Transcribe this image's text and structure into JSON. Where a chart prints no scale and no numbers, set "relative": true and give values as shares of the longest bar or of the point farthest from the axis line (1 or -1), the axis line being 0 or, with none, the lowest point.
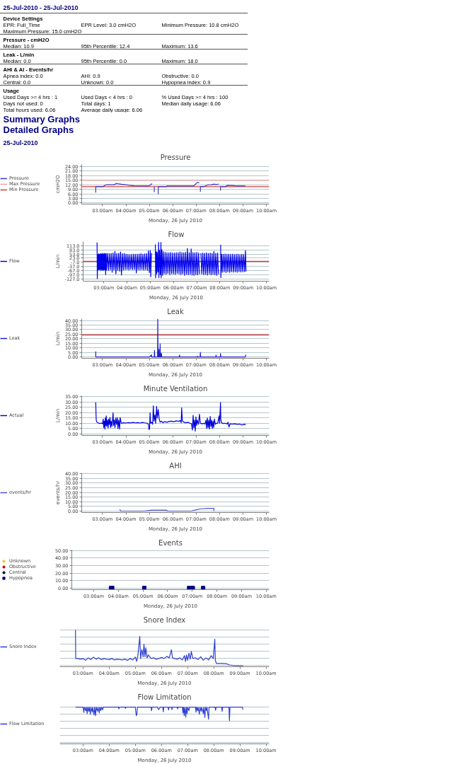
{
  "chart_data": [
    {
      "type": "other",
      "title": "25-Jul-2010 - 25-Jul-2010"
    },
    {
      "type": "other",
      "title": "Device Settings",
      "annotations": [
        "EPR: Full_Time",
        "EPR Level: 3.0 cmH2O",
        "Minimum Pressure: 10.8 cmH2O",
        "Maximum Pressure: 15.0 cmH2O"
      ]
    },
    {
      "type": "other",
      "title": "Pressure - cmH2O",
      "annotations": [
        "Median: 10.9",
        "95th Percentile: 12.4",
        "Maximum: 13.6"
      ]
    },
    {
      "type": "other",
      "title": "Leak - L/min",
      "annotations": [
        "Median: 0.0",
        "95th Percentile: 0.0",
        "Maximum: 18.0"
      ]
    },
    {
      "type": "other",
      "title": "AHI & AI - Events/hr",
      "annotations": [
        "Apnea index: 0.0",
        "AHI: 0.9",
        "Obstructive: 0.0",
        "Central: 0.0",
        "Unknown: 0.0",
        "Hypopnea index: 0.9"
      ]
    },
    {
      "type": "other",
      "title": "Usage",
      "annotations": [
        "Used Days >= 4 hrs : 1",
        "Used Days < 4 hrs : 0",
        "% Used Days >= 4 hrs : 100",
        "Days not used: 0",
        "Total days: 1",
        "Median daily usage: 6.06",
        "Total hours used: 6.06",
        "Average daily usage: 6.06"
      ]
    },
    {
      "type": "other",
      "annotations": [
        "Summary Graphs",
        "Detailed Graphs"
      ]
    },
    {
      "type": "other",
      "title": "25-Jul-2010"
    },
    {
      "type": "line",
      "title": "Pressure",
      "xlabel": "Monday, 26 July 2010",
      "ylabel": "cmH2O",
      "legend": "left",
      "grid": "y",
      "xlim": [
        2.11,
        10.12
      ],
      "xticks": [
        {
          "value": 3,
          "label": "03:00am"
        },
        {
          "value": 4,
          "label": "04:00am"
        },
        {
          "value": 5,
          "label": "05:00am"
        },
        {
          "value": 6,
          "label": "06:00am"
        },
        {
          "value": 7,
          "label": "07:00am"
        },
        {
          "value": 8,
          "label": "08:00am"
        },
        {
          "value": 9,
          "label": "09:00am"
        },
        {
          "value": 10,
          "label": "10:00am"
        }
      ],
      "ylim": [
        -0.7,
        25.4
      ],
      "yticks": [
        {
          "value": 0,
          "label": "0.00"
        },
        {
          "value": 3,
          "label": "3.00"
        },
        {
          "value": 6,
          "label": "6.00"
        },
        {
          "value": 9,
          "label": "9.00"
        },
        {
          "value": 12,
          "label": "12.00"
        },
        {
          "value": 15,
          "label": "15.00"
        },
        {
          "value": 18,
          "label": "18.00"
        },
        {
          "value": 21,
          "label": "21.00"
        },
        {
          "value": 24,
          "label": "24.00"
        }
      ],
      "series": [
        {
          "name": "Pressure",
          "color": "#3b3bbf",
          "x": [
            2.71,
            2.71,
            3.03,
            3.11,
            3.2,
            3.51,
            3.58,
            3.8,
            4.35,
            4.94,
            4.99,
            5.12,
            5.16,
            5.21,
            5.21,
            5.3,
            5.38,
            5.38,
            5.73,
            5.75,
            6.89,
            7.05,
            7.13,
            7.15,
            7.18,
            7.18,
            7.34,
            7.48,
            7.64,
            7.79,
            7.85,
            7.97,
            8.0,
            8.04,
            8.04,
            8.27,
            8.32,
            8.59,
            8.69,
            9.1
          ],
          "values": [
            6.9,
            10.8,
            10.8,
            11.8,
            12.1,
            12.1,
            12.9,
            12.4,
            11.4,
            11.2,
            11.4,
            12.8,
            null,
            10.8,
            7.2,
            null,
            5.8,
            10.8,
            10.8,
            11.2,
            11.2,
            13.6,
            13.2,
            null,
            7.5,
            10.8,
            10.8,
            11.9,
            12.1,
            12.5,
            12.1,
            12.6,
            null,
            8.3,
            10.8,
            10.8,
            11.7,
            11.6,
            11.2,
            11.2
          ]
        },
        {
          "name": "Max Pressure",
          "color": "#e8a0a0",
          "x": [
            2.11,
            10.12
          ],
          "values": [
            15,
            15
          ]
        },
        {
          "name": "Min Pressure",
          "color": "#d04040",
          "x": [
            2.11,
            10.12
          ],
          "values": [
            10.8,
            10.8
          ]
        }
      ]
    },
    {
      "type": "line",
      "title": "Flow",
      "xlabel": "Monday, 26 July 2010",
      "ylabel": "L/min",
      "legend": "left",
      "grid": "y",
      "xlim": [
        2.11,
        10.12
      ],
      "xticks": [
        {
          "value": 3,
          "label": "03:00am"
        },
        {
          "value": 4,
          "label": "04:00am"
        },
        {
          "value": 5,
          "label": "05:00am"
        },
        {
          "value": 6,
          "label": "06:00am"
        },
        {
          "value": 7,
          "label": "07:00am"
        },
        {
          "value": 8,
          "label": "08:00am"
        },
        {
          "value": 9,
          "label": "09:00am"
        },
        {
          "value": 10,
          "label": "10:00am"
        }
      ],
      "ylim": [
        -142,
        142
      ],
      "yticks": [
        {
          "value": 113,
          "label": "113.0"
        },
        {
          "value": 83,
          "label": "83.0"
        },
        {
          "value": 53,
          "label": "53.0"
        },
        {
          "value": 23,
          "label": "23.0"
        },
        {
          "value": -7,
          "label": "-7.0"
        },
        {
          "value": -37,
          "label": "-37.0"
        },
        {
          "value": -67,
          "label": "-67.0"
        },
        {
          "value": -97,
          "label": "-97.0"
        },
        {
          "value": -127,
          "label": "-127.0"
        }
      ],
      "series": [
        {
          "name": "Flow",
          "color": "#0000ee",
          "x": [
            2.71,
            2.72,
            2.74,
            2.76,
            2.78,
            2.8,
            2.82,
            2.84,
            2.86,
            2.88,
            2.9,
            2.92,
            2.94,
            2.96,
            2.98,
            3.0,
            3.02,
            3.04,
            3.06,
            3.08,
            3.1,
            3.12,
            3.16,
            3.2,
            3.24,
            3.28,
            3.32,
            3.36,
            3.4,
            3.44,
            3.48,
            3.52,
            3.56,
            3.6,
            3.64,
            3.68,
            3.72,
            3.76,
            3.8,
            3.84,
            3.88,
            3.92,
            3.96,
            4.0,
            4.04,
            4.08,
            4.12,
            4.16,
            4.2,
            4.24,
            4.28,
            4.32,
            4.36,
            4.4,
            4.44,
            4.48,
            4.52,
            4.56,
            4.6,
            4.64,
            4.68,
            4.72,
            4.76,
            4.8,
            4.84,
            4.88,
            4.92,
            4.96,
            5.0,
            5.02,
            5.05,
            5.1,
            5.22,
            5.23,
            5.26,
            5.28,
            5.3,
            5.33,
            5.36,
            5.37,
            5.4,
            5.43,
            5.46,
            5.47,
            5.5,
            5.53,
            5.56,
            5.6,
            5.64,
            5.68,
            5.72,
            5.76,
            5.8,
            5.84,
            5.88,
            5.92,
            5.96,
            6.0,
            6.04,
            6.08,
            6.12,
            6.16,
            6.2,
            6.24,
            6.28,
            6.32,
            6.36,
            6.4,
            6.44,
            6.48,
            6.52,
            6.56,
            6.6,
            6.64,
            6.68,
            6.72,
            6.76,
            6.8,
            6.84,
            6.88,
            6.92,
            6.96,
            7.0,
            7.04,
            7.08,
            7.12,
            7.15,
            7.18,
            7.22,
            7.26,
            7.3,
            7.34,
            7.38,
            7.42,
            7.46,
            7.5,
            7.54,
            7.58,
            7.62,
            7.66,
            7.7,
            7.74,
            7.78,
            7.82,
            7.86,
            7.9,
            7.94,
            7.97,
            8.03,
            8.04,
            8.07,
            8.1,
            8.14,
            8.18,
            8.22,
            8.26,
            8.3,
            8.34,
            8.38,
            8.42,
            8.46,
            8.5,
            8.54,
            8.58,
            8.62,
            8.66,
            8.7,
            8.74,
            8.78,
            8.82,
            8.86,
            8.9,
            8.94,
            8.98,
            9.02,
            9.06,
            9.1,
            9.12
          ],
          "values": [
            136,
            -124,
            50,
            -60,
            55,
            -62,
            52,
            -58,
            56,
            -66,
            53,
            -60,
            58,
            -64,
            54,
            -62,
            57,
            -60,
            55,
            -95,
            56,
            -62,
            58,
            -65,
            55,
            -60,
            57,
            -78,
            60,
            -62,
            72,
            -90,
            56,
            -63,
            58,
            -70,
            68,
            -98,
            55,
            -62,
            57,
            -60,
            52,
            -58,
            50,
            -62,
            48,
            -57,
            50,
            -60,
            52,
            -58,
            50,
            -84,
            51,
            -60,
            53,
            -62,
            55,
            -58,
            52,
            -63,
            54,
            -60,
            56,
            -64,
            75,
            -80,
            78,
            -110,
            60,
            null,
            122,
            -118,
            70,
            -90,
            65,
            -75,
            136,
            -116,
            80,
            -95,
            136,
            -118,
            83,
            -100,
            70,
            -88,
            65,
            -92,
            63,
            -86,
            62,
            -95,
            64,
            -88,
            61,
            -90,
            60,
            -92,
            63,
            -86,
            62,
            -90,
            68,
            -94,
            64,
            -88,
            62,
            -100,
            66,
            -92,
            93,
            -96,
            63,
            -92,
            90,
            -98,
            64,
            -100,
            62,
            -94,
            65,
            -96,
            60,
            -92,
            null,
            58,
            -90,
            60,
            -95,
            58,
            -92,
            62,
            -98,
            57,
            -90,
            60,
            -96,
            56,
            -92,
            72,
            -95,
            58,
            -100,
            60,
            -93,
            null,
            119,
            -116,
            52,
            -78,
            50,
            -75,
            53,
            -80,
            50,
            -76,
            52,
            -78,
            50,
            -74,
            51,
            -77,
            49,
            -75,
            50,
            -78,
            51,
            -74,
            48,
            -76,
            50,
            -75,
            49,
            -74,
            78,
            -72
          ]
        }
      ],
      "ref_lines": [
        {
          "axis": "y",
          "value": 0,
          "color": "#e03c3c"
        }
      ]
    },
    {
      "type": "line",
      "title": "Leak",
      "xlabel": "Monday, 26 July 2010",
      "ylabel": "L/min",
      "legend": "left",
      "grid": "y",
      "xlim": [
        2.11,
        10.12
      ],
      "xticks": [
        {
          "value": 3,
          "label": "03:00am"
        },
        {
          "value": 4,
          "label": "04:00am"
        },
        {
          "value": 5,
          "label": "05:00am"
        },
        {
          "value": 6,
          "label": "06:00am"
        },
        {
          "value": 7,
          "label": "07:00am"
        },
        {
          "value": 8,
          "label": "08:00am"
        },
        {
          "value": 9,
          "label": "09:00am"
        },
        {
          "value": 10,
          "label": "10:00am"
        }
      ],
      "ylim": [
        -1.5,
        42
      ],
      "yticks": [
        {
          "value": 0,
          "label": "0.00"
        },
        {
          "value": 5,
          "label": "5.00"
        },
        {
          "value": 10,
          "label": "10.00"
        },
        {
          "value": 15,
          "label": "15.00"
        },
        {
          "value": 20,
          "label": "20.00"
        },
        {
          "value": 25,
          "label": "25.00"
        },
        {
          "value": 30,
          "label": "30.00"
        },
        {
          "value": 35,
          "label": "35.00"
        },
        {
          "value": 40,
          "label": "40.00"
        }
      ],
      "series": [
        {
          "name": "Leak",
          "color": "#1f1fcf",
          "x": [
            2.71,
            2.71,
            5.0,
            5.09,
            5.1,
            5.21,
            5.22,
            5.23,
            5.35,
            5.36,
            5.37,
            5.4,
            5.41,
            5.42,
            5.45,
            5.46,
            5.47,
            5.48,
            5.49,
            5.5,
            5.52,
            5.53,
            6.28,
            6.29,
            6.3,
            7.04,
            7.05,
            7.06,
            7.17,
            7.18,
            7.19,
            7.84,
            7.85,
            7.86,
            8.03,
            8.04,
            8.05,
            9.1,
            9.12
          ],
          "values": [
            6.1,
            0,
            0,
            2.2,
            0,
            0,
            7.2,
            0,
            0,
            41.5,
            0,
            0,
            8.5,
            0,
            0,
            14.3,
            0,
            0,
            4,
            0,
            3.5,
            0,
            0,
            2.2,
            0,
            0,
            1,
            0,
            0,
            5,
            0,
            0,
            2.2,
            0,
            0,
            3.7,
            0,
            0,
            2.4
          ]
        }
      ],
      "ref_lines": [
        {
          "axis": "y",
          "value": 24,
          "color": "#e03c3c"
        }
      ]
    },
    {
      "type": "line",
      "title": "Minute Ventilation",
      "xlabel": "Monday, 26 July 2010",
      "ylabel": "L/min",
      "legend": "left",
      "grid": "y",
      "xlim": [
        2.11,
        10.12
      ],
      "xticks": [
        {
          "value": 3,
          "label": "03:00am"
        },
        {
          "value": 4,
          "label": "04:00am"
        },
        {
          "value": 5,
          "label": "05:00am"
        },
        {
          "value": 6,
          "label": "06:00am"
        },
        {
          "value": 7,
          "label": "07:00am"
        },
        {
          "value": 8,
          "label": "08:00am"
        },
        {
          "value": 9,
          "label": "09:00am"
        },
        {
          "value": 10,
          "label": "10:00am"
        }
      ],
      "ylim": [
        -1.5,
        36
      ],
      "yticks": [
        {
          "value": 0,
          "label": "0.00"
        },
        {
          "value": 5,
          "label": "5.00"
        },
        {
          "value": 10,
          "label": "10.00"
        },
        {
          "value": 15,
          "label": "15.00"
        },
        {
          "value": 20,
          "label": "20.00"
        },
        {
          "value": 25,
          "label": "25.00"
        },
        {
          "value": 30,
          "label": "30.00"
        },
        {
          "value": 35,
          "label": "35.00"
        }
      ],
      "series": [
        {
          "name": "Actual",
          "color": "#0000dd",
          "x": [
            2.71,
            2.72,
            2.73,
            2.76,
            2.8,
            2.85,
            2.9,
            2.95,
            3.0,
            3.03,
            3.05,
            3.08,
            3.1,
            3.12,
            3.14,
            3.16,
            3.18,
            3.21,
            3.24,
            3.26,
            3.29,
            3.32,
            3.34,
            3.37,
            3.4,
            3.43,
            3.45,
            3.47,
            3.5,
            3.53,
            3.56,
            3.6,
            3.63,
            3.66,
            3.69,
            3.73,
            3.75,
            3.8,
            3.9,
            4.0,
            4.1,
            4.2,
            4.3,
            4.4,
            4.5,
            4.6,
            4.7,
            4.8,
            4.9,
            4.96,
            4.99,
            5.01,
            5.03,
            5.05,
            5.1,
            5.14,
            5.17,
            5.2,
            5.24,
            5.27,
            5.31,
            5.34,
            5.38,
            5.42,
            5.46,
            5.52,
            5.58,
            5.65,
            5.75,
            5.85,
            5.95,
            6.05,
            6.15,
            6.25,
            6.32,
            6.36,
            6.38,
            6.41,
            6.48,
            6.56,
            6.64,
            6.72,
            6.8,
            6.84,
            6.87,
            6.9,
            6.93,
            6.96,
            6.99,
            7.02,
            7.05,
            7.1,
            7.14,
            7.18,
            7.25,
            7.32,
            7.38,
            7.42,
            7.45,
            7.48,
            7.51,
            7.54,
            7.57,
            7.6,
            7.63,
            7.66,
            7.69,
            7.72,
            7.75,
            7.78,
            7.82,
            7.86,
            7.92,
            7.98,
            8.0,
            8.04,
            8.05,
            8.08,
            8.15,
            8.25,
            8.32,
            8.36,
            8.4,
            8.45,
            8.55,
            8.65,
            8.75,
            8.85,
            8.95,
            9.05,
            9.12
          ],
          "values": [
            29.8,
            20,
            13,
            11,
            10.5,
            10,
            9.8,
            10.2,
            9.5,
            14,
            6,
            12,
            4.5,
            15,
            8,
            17,
            7,
            13,
            5.5,
            14,
            9,
            15.5,
            6,
            12,
            7,
            14,
            20,
            8,
            13,
            6,
            15,
            9,
            15.5,
            5,
            13,
            4.5,
            15.5,
            10,
            10.5,
            10.2,
            10.6,
            10.3,
            10.8,
            10.4,
            10.6,
            10.2,
            10.8,
            10.4,
            10.1,
            9,
            4,
            5,
            20,
            10,
            11,
            9,
            26.5,
            12,
            18,
            10,
            26,
            15,
            23,
            14,
            11,
            12,
            10.5,
            11.5,
            11,
            11.8,
            12,
            11.5,
            12.3,
            11.8,
            12.5,
            10.5,
            24.5,
            12,
            11,
            10.5,
            11,
            10.2,
            9.5,
            3.5,
            17.5,
            6,
            13,
            2.5,
            16,
            8,
            13,
            9,
            18.5,
            10,
            9.5,
            10,
            9.2,
            13,
            5,
            15,
            6,
            13,
            4.5,
            16.5,
            7,
            13,
            5,
            12,
            6,
            14,
            9,
            10,
            10,
            17,
            10,
            29.8,
            14,
            10.5,
            9.8,
            10,
            9.2,
            11,
            6.5,
            9.5,
            9.2,
            9.5,
            9,
            9.2,
            8.5,
            9,
            8.8
          ]
        }
      ]
    },
    {
      "type": "line",
      "title": "AHI",
      "xlabel": "Monday, 26 July 2010",
      "ylabel": "events/hr",
      "legend": "left",
      "grid": "y",
      "xlim": [
        2.11,
        10.12
      ],
      "xticks": [
        {
          "value": 3,
          "label": "03:00am"
        },
        {
          "value": 4,
          "label": "04:00am"
        },
        {
          "value": 5,
          "label": "05:00am"
        },
        {
          "value": 6,
          "label": "06:00am"
        },
        {
          "value": 7,
          "label": "07:00am"
        },
        {
          "value": 8,
          "label": "08:00am"
        },
        {
          "value": 9,
          "label": "09:00am"
        },
        {
          "value": 10,
          "label": "10:00am"
        }
      ],
      "ylim": [
        -1.5,
        41
      ],
      "yticks": [
        {
          "value": 0,
          "label": "0.00"
        },
        {
          "value": 5,
          "label": "5.00"
        },
        {
          "value": 10,
          "label": "10.00"
        },
        {
          "value": 15,
          "label": "15.00"
        },
        {
          "value": 20,
          "label": "20.00"
        },
        {
          "value": 25,
          "label": "25.00"
        },
        {
          "value": 30,
          "label": "30.00"
        },
        {
          "value": 35,
          "label": "35.00"
        },
        {
          "value": 40,
          "label": "40.00"
        }
      ],
      "series": [
        {
          "name": "events/hr",
          "color": "#5050c8",
          "x": [
            3.74,
            3.77,
            4.78,
            5.1,
            5.73,
            5.78,
            6.79,
            7.0,
            7.21,
            7.5,
            7.69,
            7.76,
            7.76
          ],
          "values": [
            2,
            0,
            0,
            1,
            1,
            0,
            0,
            1.5,
            2.5,
            3,
            3,
            3,
            0
          ]
        }
      ]
    },
    {
      "type": "scatter",
      "title": "Events",
      "xlabel": "Monday, 26 July 2010",
      "legend": "left",
      "grid": "y",
      "xlim": [
        2.11,
        10.12
      ],
      "xticks": [
        {
          "value": 3,
          "label": "03:00am"
        },
        {
          "value": 4,
          "label": "04:00am"
        },
        {
          "value": 5,
          "label": "05:00am"
        },
        {
          "value": 6,
          "label": "06:00am"
        },
        {
          "value": 7,
          "label": "07:00am"
        },
        {
          "value": 8,
          "label": "08:00am"
        },
        {
          "value": 9,
          "label": "09:00am"
        },
        {
          "value": 10,
          "label": "10:00am"
        }
      ],
      "ylim": [
        -2.2,
        50.8
      ],
      "yticks": [
        {
          "value": 0,
          "label": "0.00"
        },
        {
          "value": 10,
          "label": "10.00"
        },
        {
          "value": 20,
          "label": "20.00"
        },
        {
          "value": 30,
          "label": "30.00"
        },
        {
          "value": 40,
          "label": "40.00"
        },
        {
          "value": 50,
          "label": "50.00"
        }
      ],
      "series": [
        {
          "name": "Unknown",
          "color": "#e8c820",
          "marker": "circle"
        },
        {
          "name": "Obstructive",
          "color": "#c00000",
          "marker": "circle"
        },
        {
          "name": "Central",
          "color": "#000000",
          "marker": "circle"
        },
        {
          "name": "Hypopnea",
          "color": "#000080",
          "marker": "square",
          "x": [
            3.7,
            3.75,
            5.05,
            6.87,
            7.02,
            7.44
          ],
          "values": [
            0,
            0,
            0,
            0,
            0,
            0
          ]
        }
      ]
    },
    {
      "type": "line",
      "title": "Snore Index",
      "xlabel": "Monday, 26 July 2010",
      "legend": "left",
      "grid": "y",
      "relative": true,
      "xlim": [
        2.11,
        10.12
      ],
      "xticks": [
        {
          "value": 3,
          "label": "03:00am"
        },
        {
          "value": 4,
          "label": "04:00am"
        },
        {
          "value": 5,
          "label": "05:00am"
        },
        {
          "value": 6,
          "label": "06:00am"
        },
        {
          "value": 7,
          "label": "07:00am"
        },
        {
          "value": 8,
          "label": "08:00am"
        },
        {
          "value": 9,
          "label": "09:00am"
        },
        {
          "value": 10,
          "label": "10:00am"
        }
      ],
      "series": [
        {
          "name": "Snore Index",
          "color": "#2f3fd0",
          "x": [
            2.71,
            2.72,
            2.8,
            2.9,
            3.0,
            3.1,
            3.2,
            3.3,
            3.4,
            3.5,
            3.6,
            3.7,
            3.8,
            3.9,
            4.0,
            4.1,
            4.2,
            4.3,
            4.4,
            4.5,
            4.6,
            4.7,
            4.8,
            4.9,
            5.0,
            5.05,
            5.1,
            5.17,
            5.2,
            5.25,
            5.3,
            5.33,
            5.37,
            5.4,
            5.45,
            5.5,
            5.6,
            5.7,
            5.8,
            5.9,
            6.0,
            6.1,
            6.2,
            6.3,
            6.38,
            6.42,
            6.5,
            6.6,
            6.7,
            6.8,
            6.88,
            6.92,
            6.96,
            7.0,
            7.05,
            7.1,
            7.14,
            7.2,
            7.3,
            7.4,
            7.5,
            7.6,
            7.7,
            7.8,
            7.9,
            7.98,
            8.04,
            8.06,
            8.1,
            8.3,
            8.5,
            8.6,
            8.8,
            9.12
          ],
          "values": [
            1,
            0.2,
            0.2,
            0.18,
            0.2,
            0.15,
            0.22,
            0.17,
            0.24,
            0.18,
            0.22,
            0.17,
            0.2,
            0.18,
            0.17,
            0.2,
            0.16,
            0.18,
            0.17,
            0.16,
            0.18,
            0.15,
            0.2,
            0.16,
            0.24,
            0.12,
            0.3,
            0.82,
            0.2,
            0.45,
            0.25,
            0.6,
            0.25,
            0.5,
            0.22,
            0.3,
            0.2,
            0.22,
            0.18,
            0.2,
            0.23,
            0.2,
            0.26,
            0.22,
            0.45,
            0.22,
            0.2,
            0.18,
            0.22,
            0.16,
            0.28,
            0.12,
            0.3,
            0.15,
            0.35,
            0.18,
            0.4,
            0.2,
            0.22,
            0.17,
            0.25,
            0.15,
            0.22,
            0.16,
            0.28,
            0.2,
            0.74,
            0.15,
            0.06,
            0.06,
            0.05,
            0.02,
            0,
            0
          ]
        }
      ]
    },
    {
      "type": "line",
      "title": "Flow Limitation",
      "xlabel": "Monday, 26 July 2010",
      "legend": "left",
      "grid": "y",
      "relative": true,
      "xlim": [
        2.11,
        10.12
      ],
      "xticks": [
        {
          "value": 3,
          "label": "03:00am"
        },
        {
          "value": 4,
          "label": "04:00am"
        },
        {
          "value": 5,
          "label": "05:00am"
        },
        {
          "value": 6,
          "label": "06:00am"
        },
        {
          "value": 7,
          "label": "07:00am"
        },
        {
          "value": 8,
          "label": "08:00am"
        },
        {
          "value": 9,
          "label": "09:00am"
        },
        {
          "value": 10,
          "label": "10:00am"
        }
      ],
      "series": [
        {
          "name": "Flow Limitation",
          "color": "#2f3fd0",
          "x": [
            2.71,
            3.0,
            3.03,
            3.05,
            3.1,
            3.12,
            3.16,
            3.18,
            3.22,
            3.24,
            3.28,
            3.3,
            3.35,
            3.37,
            3.42,
            3.44,
            3.48,
            3.5,
            3.55,
            3.57,
            3.62,
            3.64,
            3.68,
            3.7,
            3.75,
            3.77,
            4.35,
            4.37,
            4.39,
            4.6,
            4.62,
            4.64,
            5.0,
            5.02,
            5.04,
            5.06,
            5.08,
            5.6,
            5.62,
            5.64,
            5.85,
            5.88,
            5.92,
            5.95,
            6.05,
            6.07,
            6.09,
            6.25,
            6.27,
            6.29,
            6.38,
            6.4,
            6.42,
            6.6,
            6.62,
            6.64,
            6.8,
            6.82,
            6.84,
            6.87,
            6.89,
            6.93,
            6.95,
            6.98,
            7.0,
            7.05,
            7.07,
            7.3,
            7.32,
            7.34,
            7.38,
            7.4,
            7.45,
            7.47,
            7.52,
            7.54,
            7.6,
            7.62,
            7.66,
            7.68,
            7.72,
            7.74,
            7.8,
            7.82,
            8.05,
            8.07,
            8.09,
            8.3,
            8.32,
            8.34,
            8.58,
            8.6,
            8.62,
            9.1,
            9.12
          ],
          "values": [
            1,
            1,
            0.85,
            1,
            0.9,
            1,
            0.82,
            1,
            0.88,
            1,
            0.8,
            1,
            0.86,
            1,
            0.78,
            1,
            0.76,
            1,
            0.88,
            1,
            0.84,
            1,
            0.9,
            1,
            0.92,
            1,
            1,
            0.95,
            1,
            1,
            0.96,
            1,
            1,
            0.85,
            0.76,
            0.8,
            1,
            1,
            0.9,
            1,
            1,
            0.93,
            0.95,
            1,
            1,
            0.87,
            1,
            1,
            0.92,
            1,
            1,
            0.93,
            1,
            1,
            0.95,
            1,
            1,
            0.84,
            1,
            0.76,
            1,
            0.72,
            1,
            0.82,
            1,
            0.9,
            1,
            1,
            0.86,
            1,
            0.9,
            1,
            0.8,
            1,
            0.88,
            1,
            0.82,
            1,
            0.71,
            1,
            0.9,
            1,
            0.66,
            1,
            1,
            0.91,
            1,
            1,
            0.88,
            1,
            1,
            0.62,
            1,
            1,
            0.93
          ]
        }
      ]
    }
  ]
}
